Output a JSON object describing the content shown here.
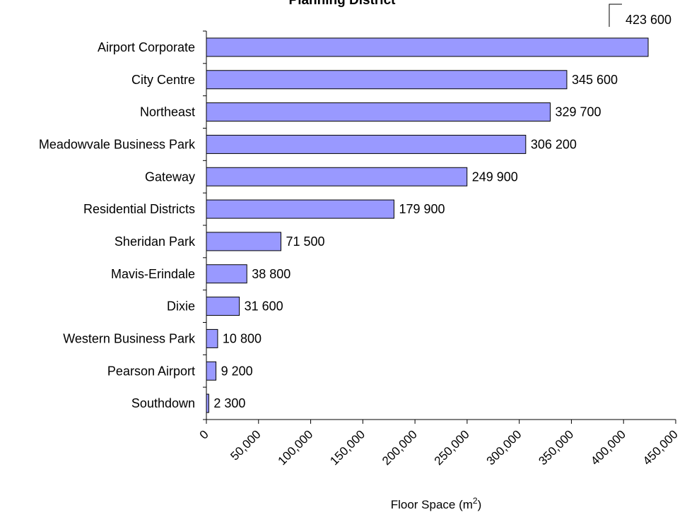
{
  "chart_data": {
    "type": "bar",
    "orientation": "horizontal",
    "title": "Planning District",
    "xlabel": "Floor Space (m",
    "xlabel_superscript": "2",
    "xlabel_close": ")",
    "xlim": [
      0,
      450000
    ],
    "x_ticks": [
      "0",
      "50,000",
      "100,000",
      "150,000",
      "200,000",
      "250,000",
      "300,000",
      "350,000",
      "400,000",
      "450,000"
    ],
    "x_tick_values": [
      0,
      50000,
      100000,
      150000,
      200000,
      250000,
      300000,
      350000,
      400000,
      450000
    ],
    "categories": [
      "Airport Corporate",
      "City Centre",
      "Northeast",
      "Meadowvale Business Park",
      "Gateway",
      "Residential Districts",
      "Sheridan Park",
      "Mavis-Erindale",
      "Dixie",
      "Western Business Park",
      "Pearson Airport",
      "Southdown"
    ],
    "values": [
      423600,
      345600,
      329700,
      306200,
      249900,
      179900,
      71500,
      38800,
      31600,
      10800,
      9200,
      2300
    ],
    "value_labels": [
      "423 600",
      "345 600",
      "329 700",
      "306 200",
      "249 900",
      "179 900",
      "71 500",
      "38 800",
      "31 600",
      "10 800",
      "9 200",
      "2 300"
    ],
    "bar_color": "#9999ff",
    "grid": false,
    "legend": "none"
  }
}
